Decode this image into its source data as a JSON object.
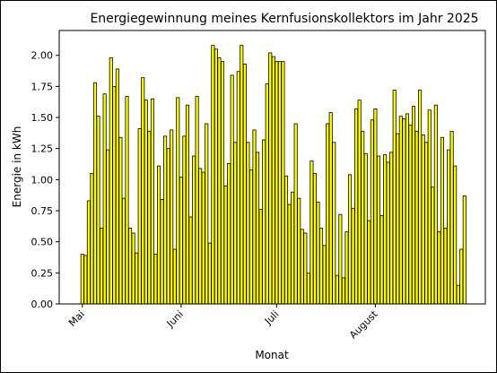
{
  "chart_data": {
    "type": "bar",
    "title": "Energiegewinnung meines Kernfusionskollektors im Jahr 2025",
    "xlabel": "Monat",
    "ylabel": "Energie in kWh",
    "ylim": [
      0,
      2.2
    ],
    "yticks": [
      "0.00",
      "0.25",
      "0.50",
      "0.75",
      "1.00",
      "1.25",
      "1.50",
      "1.75",
      "2.00"
    ],
    "xticks": [
      {
        "label": "Mai",
        "index": 0
      },
      {
        "label": "Juni",
        "index": 31
      },
      {
        "label": "Juli",
        "index": 61
      },
      {
        "label": "August",
        "index": 92
      }
    ],
    "grid": false,
    "bar_color": "#ffff00",
    "edge_color": "#000000",
    "series": [
      {
        "values": [
          0.4,
          0.39,
          0.83,
          1.05,
          1.78,
          1.51,
          0.61,
          1.69,
          1.24,
          1.98,
          1.75,
          1.89,
          1.34,
          0.85,
          1.67,
          0.61,
          0.57,
          0.41,
          1.41,
          1.82,
          1.64,
          1.39,
          1.65,
          0.4,
          1.11,
          0.84,
          1.35,
          1.25,
          1.4,
          0.44,
          1.66,
          1.02,
          1.35,
          1.6,
          0.7,
          1.19,
          1.67,
          1.09,
          1.06,
          1.45,
          0.49,
          2.08,
          2.05,
          1.98,
          1.95,
          0.95,
          1.13,
          1.84,
          1.3,
          1.87,
          2.08,
          1.93,
          1.3,
          1.08,
          1.4,
          1.22,
          0.76,
          1.32,
          1.77,
          2.02,
          1.99,
          1.95,
          1.95,
          1.95,
          1.03,
          0.8,
          0.9,
          1.45,
          0.85,
          0.6,
          0.57,
          0.25,
          1.15,
          1.05,
          0.82,
          0.61,
          0.47,
          1.45,
          1.54,
          1.3,
          0.23,
          0.72,
          0.21,
          0.58,
          1.04,
          0.77,
          1.57,
          1.64,
          1.39,
          1.21,
          0.67,
          1.48,
          1.57,
          1.19,
          0.71,
          1.2,
          1.14,
          1.22,
          1.72,
          1.37,
          1.51,
          1.49,
          1.53,
          1.44,
          1.59,
          1.39,
          1.72,
          1.36,
          1.3,
          1.56,
          0.94,
          1.6,
          0.58,
          1.34,
          0.61,
          1.24,
          1.39,
          1.11,
          0.15,
          0.44,
          0.87
        ]
      }
    ]
  }
}
